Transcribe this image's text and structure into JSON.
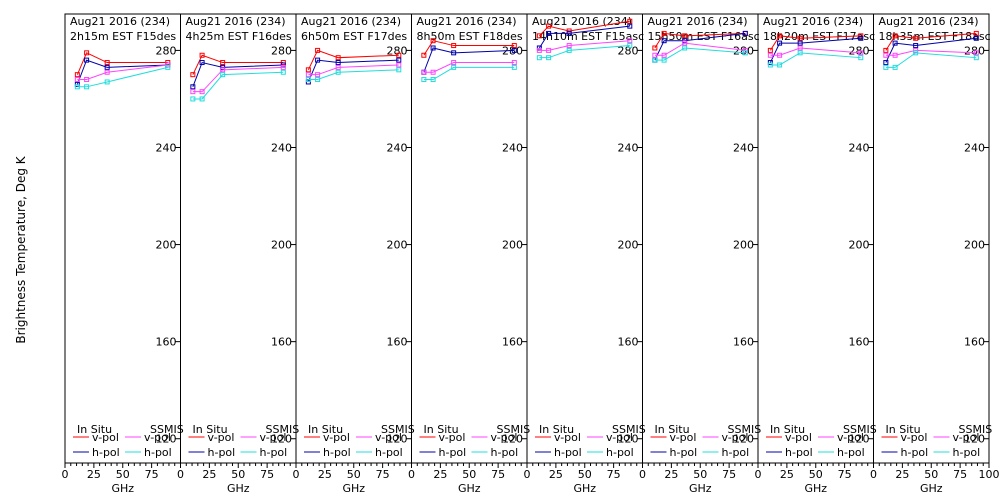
{
  "chart_data": {
    "type": "line",
    "ylabel": "Brightness Temperature, Deg K",
    "xlabel": "GHz",
    "xticks": [
      "0",
      "25",
      "50",
      "75",
      "100"
    ],
    "xlim": [
      0,
      100
    ],
    "ylim": [
      110,
      295
    ],
    "yticks": [
      120,
      160,
      200,
      240,
      280
    ],
    "freqs": [
      10.7,
      18.7,
      36.5,
      89.0
    ],
    "legend": {
      "insitu_title": "In Situ",
      "ssmis_title": "SSMIS",
      "items": [
        "v-pol",
        "h-pol",
        "v-pol",
        "h-pol"
      ]
    },
    "colors": {
      "insitu_v": "#ff0000",
      "insitu_h": "#0000aa",
      "ssmis_v": "#ff44ff",
      "ssmis_h": "#22dddd"
    },
    "panels": [
      {
        "line1": "Aug21 2016 (234)",
        "line2": "2h15m EST F15des",
        "insitu_v": [
          270,
          279,
          275,
          275
        ],
        "insitu_h": [
          266,
          276,
          273,
          274
        ],
        "ssmis_v": [
          268,
          268,
          271,
          274
        ],
        "ssmis_h": [
          265,
          265,
          267,
          273
        ]
      },
      {
        "line1": "Aug21 2016 (234)",
        "line2": "4h25m EST F16des",
        "insitu_v": [
          270,
          278,
          275,
          275
        ],
        "insitu_h": [
          265,
          275,
          273,
          274
        ],
        "ssmis_v": [
          263,
          263,
          272,
          273
        ],
        "ssmis_h": [
          260,
          260,
          270,
          271
        ]
      },
      {
        "line1": "Aug21 2016 (234)",
        "line2": "6h50m EST F17des",
        "insitu_v": [
          272,
          280,
          277,
          278
        ],
        "insitu_h": [
          267,
          276,
          275,
          276
        ],
        "ssmis_v": [
          270,
          270,
          273,
          274
        ],
        "ssmis_h": [
          268,
          268,
          271,
          272
        ]
      },
      {
        "line1": "Aug21 2016 (234)",
        "line2": "8h50m EST F18des",
        "insitu_v": [
          278,
          284,
          282,
          282
        ],
        "insitu_h": [
          271,
          281,
          279,
          280
        ],
        "ssmis_v": [
          271,
          271,
          275,
          275
        ],
        "ssmis_h": [
          268,
          268,
          273,
          273
        ]
      },
      {
        "line1": "Aug21 2016 (234)",
        "line2": "14h10m EST F15asc",
        "insitu_v": [
          286,
          290,
          288,
          292
        ],
        "insitu_h": [
          281,
          287,
          287,
          290
        ],
        "ssmis_v": [
          280,
          280,
          282,
          284
        ],
        "ssmis_h": [
          277,
          277,
          280,
          282
        ]
      },
      {
        "line1": "Aug21 2016 (234)",
        "line2": "15h50m EST F16asc",
        "insitu_v": [
          281,
          287,
          286,
          287
        ],
        "insitu_h": [
          276,
          284,
          284,
          287
        ],
        "ssmis_v": [
          278,
          278,
          283,
          280
        ],
        "ssmis_h": [
          276,
          276,
          281,
          279
        ]
      },
      {
        "line1": "Aug21 2016 (234)",
        "line2": "18h20m EST F17asc",
        "insitu_v": [
          280,
          286,
          285,
          286
        ],
        "insitu_h": [
          275,
          283,
          283,
          285
        ],
        "ssmis_v": [
          278,
          278,
          281,
          279
        ],
        "ssmis_h": [
          274,
          274,
          279,
          277
        ]
      },
      {
        "line1": "Aug21 2016 (234)",
        "line2": "18h35m EST F18asc",
        "insitu_v": [
          280,
          286,
          285,
          287
        ],
        "insitu_h": [
          275,
          283,
          282,
          285
        ],
        "ssmis_v": [
          278,
          278,
          280,
          279
        ],
        "ssmis_h": [
          273,
          273,
          279,
          277
        ]
      }
    ]
  }
}
